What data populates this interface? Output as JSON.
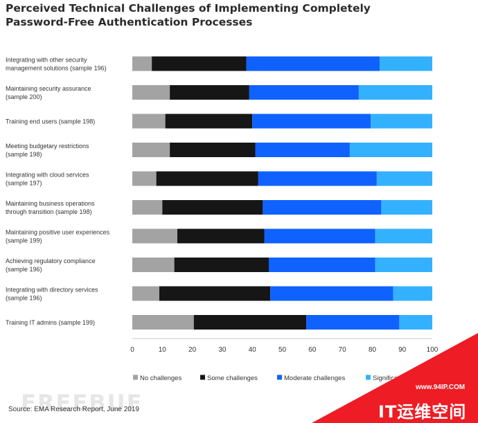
{
  "header": {
    "title_line1": "Perceived Technical Challenges of Implementing Completely",
    "title_line2": "Password-Free Authentication Processes"
  },
  "footer": {
    "source": "Source: EMA Research Report, June 2019"
  },
  "watermark": {
    "wordmark": "FREEBUF",
    "url": "www.94IP.COM",
    "brand": "IT运维空间"
  },
  "colors": {
    "no_challenges": "#a3a3a3",
    "some_challenges": "#161616",
    "moderate_challenges": "#0f62fe",
    "significant_challenges": "#33b1ff",
    "corner_red": "#ee1c25"
  },
  "chart_data": {
    "type": "bar",
    "orientation": "horizontal",
    "stacked": true,
    "categories": [
      [
        "Integrating with other security",
        "management solutions (sample 196)"
      ],
      [
        "Maintaining security assurance",
        "(sample 200)"
      ],
      [
        "Training end users (sample 198)"
      ],
      [
        "Meeting budgetary restrictions",
        "(sample 198)"
      ],
      [
        "Integrating with cloud services",
        "(sample 197)"
      ],
      [
        "Maintaining business operations",
        "through transition (sample 198)"
      ],
      [
        "Maintaining positive user experiences",
        "(sample 199)"
      ],
      [
        "Achieving regulatory compliance",
        "(sample 196)"
      ],
      [
        "Integrating with directory services",
        "(sample 196)"
      ],
      [
        "Training IT admins (sample 199)"
      ]
    ],
    "series": [
      {
        "name": "No challenges",
        "values": [
          6.5,
          12.5,
          11,
          12.5,
          8,
          10,
          15,
          14,
          9,
          20.5
        ]
      },
      {
        "name": "Some challenges",
        "values": [
          31.5,
          26.5,
          29,
          28.5,
          34,
          33.5,
          29,
          31.5,
          37,
          37.5
        ]
      },
      {
        "name": "Moderate challenges",
        "values": [
          44.5,
          36.5,
          39.5,
          31.5,
          39.5,
          39.5,
          37,
          35.5,
          41,
          31
        ]
      },
      {
        "name": "Significant challenges",
        "values": [
          17.5,
          24.5,
          20.5,
          27.5,
          18.5,
          17,
          19,
          19,
          13,
          11
        ]
      }
    ],
    "xlim": [
      0,
      100
    ],
    "xticks": [
      0,
      10,
      20,
      30,
      40,
      50,
      60,
      70,
      80,
      90,
      100
    ],
    "grid": false,
    "legend_position": "bottom"
  }
}
